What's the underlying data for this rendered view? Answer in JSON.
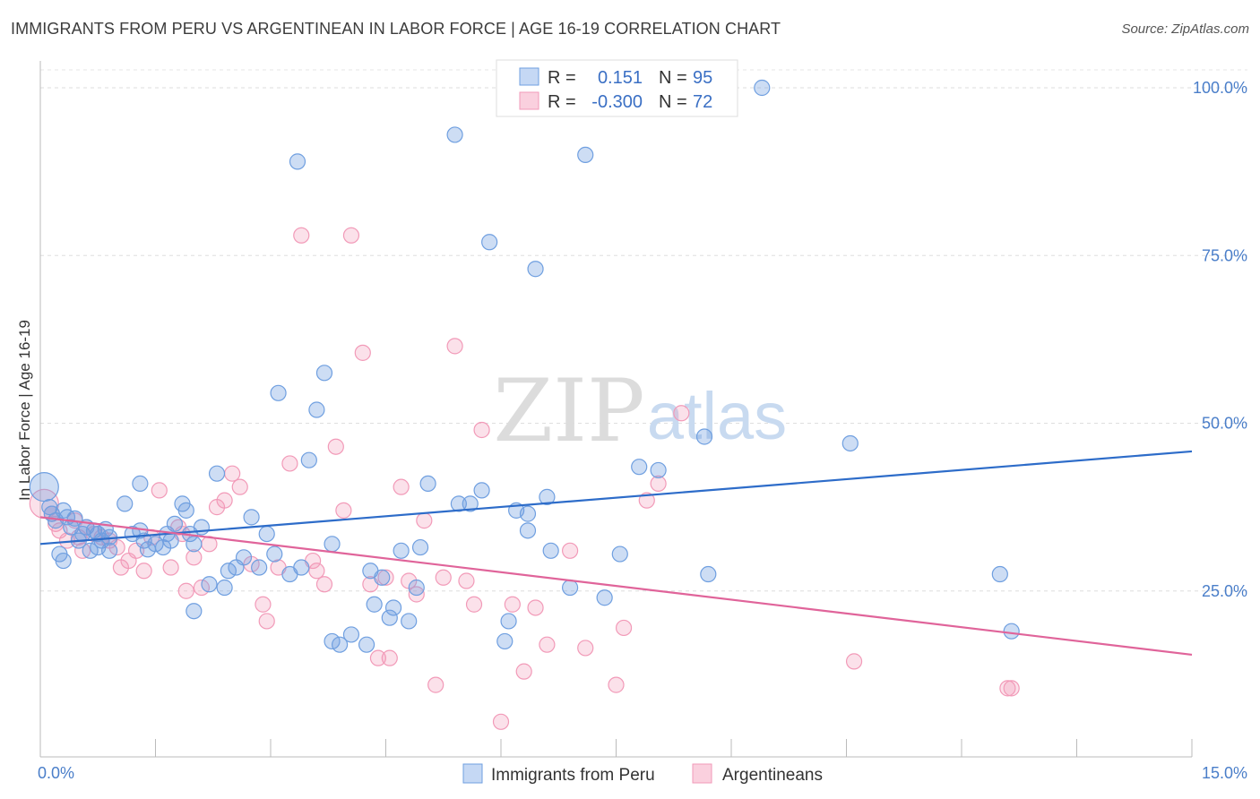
{
  "title": "IMMIGRANTS FROM PERU VS ARGENTINEAN IN LABOR FORCE | AGE 16-19 CORRELATION CHART",
  "source": "Source: ZipAtlas.com",
  "watermark": {
    "zip": "ZIP",
    "atlas": "atlas"
  },
  "colors": {
    "blue": "#6f9fe0",
    "pink": "#f29ab8",
    "blue_line": "#2d6cc9",
    "pink_line": "#e0649a"
  },
  "chart_data": {
    "type": "scatter",
    "ylabel": "In Labor Force | Age 16-19",
    "xlabel": "",
    "xlim": [
      0,
      15
    ],
    "ylim": [
      0,
      100
    ],
    "x_tick_labels": [
      "0.0%",
      "15.0%"
    ],
    "y_ticks": [
      25,
      50,
      75,
      100
    ],
    "y_tick_labels": [
      "25.0%",
      "50.0%",
      "75.0%",
      "100.0%"
    ],
    "grid": "horizontal dashed",
    "legend": {
      "placement": "top-center",
      "rows": [
        {
          "r_label": "R =",
          "r_value": "0.151",
          "n_label": "N =",
          "n_value": "95"
        },
        {
          "r_label": "R =",
          "r_value": "-0.300",
          "n_label": "N =",
          "n_value": "72"
        }
      ]
    },
    "series": [
      {
        "name": "Immigrants from Peru",
        "color": "#6f9fe0",
        "trend": {
          "x": [
            0,
            15
          ],
          "y": [
            32.0,
            45.8
          ]
        },
        "points": [
          [
            0.05,
            40.5
          ],
          [
            0.12,
            37.5
          ],
          [
            0.15,
            36.5
          ],
          [
            0.2,
            35.5
          ],
          [
            0.25,
            30.5
          ],
          [
            0.3,
            37
          ],
          [
            0.35,
            36
          ],
          [
            0.4,
            34.5
          ],
          [
            0.45,
            35.8
          ],
          [
            0.5,
            32.5
          ],
          [
            0.55,
            33.5
          ],
          [
            0.6,
            34.5
          ],
          [
            0.65,
            31
          ],
          [
            0.7,
            34
          ],
          [
            0.75,
            33.5
          ],
          [
            0.8,
            32.5
          ],
          [
            0.85,
            34.2
          ],
          [
            0.9,
            33
          ],
          [
            1.1,
            38
          ],
          [
            1.2,
            33.5
          ],
          [
            1.3,
            34
          ],
          [
            1.35,
            32.5
          ],
          [
            1.4,
            31.2
          ],
          [
            1.5,
            32
          ],
          [
            1.6,
            31.5
          ],
          [
            1.65,
            33.5
          ],
          [
            1.7,
            32.5
          ],
          [
            1.75,
            35
          ],
          [
            1.85,
            38
          ],
          [
            1.9,
            37
          ],
          [
            1.95,
            33.5
          ],
          [
            2.0,
            32
          ],
          [
            2.1,
            34.5
          ],
          [
            2.2,
            26
          ],
          [
            2.3,
            42.5
          ],
          [
            2.4,
            25.5
          ],
          [
            2.45,
            28
          ],
          [
            2.55,
            28.5
          ],
          [
            2.65,
            30
          ],
          [
            2.75,
            36
          ],
          [
            2.85,
            28.5
          ],
          [
            2.95,
            33.5
          ],
          [
            3.05,
            30.5
          ],
          [
            3.1,
            54.5
          ],
          [
            3.35,
            89
          ],
          [
            3.25,
            27.5
          ],
          [
            3.4,
            28.5
          ],
          [
            3.5,
            44.5
          ],
          [
            3.6,
            52
          ],
          [
            3.7,
            57.5
          ],
          [
            3.8,
            17.5
          ],
          [
            3.9,
            17
          ],
          [
            4.05,
            18.5
          ],
          [
            4.25,
            17
          ],
          [
            4.3,
            28
          ],
          [
            4.35,
            23
          ],
          [
            4.45,
            27
          ],
          [
            4.55,
            21
          ],
          [
            4.6,
            22.5
          ],
          [
            4.7,
            31
          ],
          [
            4.8,
            20.5
          ],
          [
            4.95,
            31.5
          ],
          [
            5.05,
            41
          ],
          [
            5.4,
            93
          ],
          [
            5.45,
            38
          ],
          [
            5.6,
            38
          ],
          [
            5.75,
            40
          ],
          [
            5.85,
            77
          ],
          [
            6.05,
            17.5
          ],
          [
            6.1,
            20.5
          ],
          [
            6.2,
            37
          ],
          [
            6.35,
            34
          ],
          [
            6.45,
            73
          ],
          [
            6.6,
            39
          ],
          [
            6.65,
            31
          ],
          [
            6.9,
            25.5
          ],
          [
            7.1,
            90
          ],
          [
            7.35,
            24
          ],
          [
            7.55,
            30.5
          ],
          [
            7.8,
            43.5
          ],
          [
            8.05,
            43
          ],
          [
            8.65,
            48
          ],
          [
            8.7,
            27.5
          ],
          [
            9.4,
            100
          ],
          [
            10.55,
            47
          ],
          [
            12.5,
            27.5
          ],
          [
            12.65,
            19
          ],
          [
            0.3,
            29.5
          ],
          [
            0.9,
            31
          ],
          [
            2.0,
            22
          ],
          [
            3.8,
            32
          ],
          [
            4.9,
            25.5
          ],
          [
            6.35,
            36.5
          ],
          [
            1.3,
            41
          ],
          [
            0.75,
            31.5
          ]
        ]
      },
      {
        "name": "Argentineans",
        "color": "#f29ab8",
        "trend": {
          "x": [
            0,
            15
          ],
          "y": [
            36.0,
            15.5
          ]
        },
        "points": [
          [
            0.05,
            38
          ],
          [
            0.15,
            36.5
          ],
          [
            0.2,
            35
          ],
          [
            0.25,
            34
          ],
          [
            0.35,
            32.5
          ],
          [
            0.45,
            35.5
          ],
          [
            0.5,
            33
          ],
          [
            0.6,
            34.5
          ],
          [
            0.7,
            33.5
          ],
          [
            0.8,
            33
          ],
          [
            0.9,
            32.5
          ],
          [
            1.0,
            31.5
          ],
          [
            1.05,
            28.5
          ],
          [
            1.15,
            29.5
          ],
          [
            1.25,
            31
          ],
          [
            1.35,
            28
          ],
          [
            1.45,
            33
          ],
          [
            1.55,
            40
          ],
          [
            1.7,
            28.5
          ],
          [
            1.8,
            34.5
          ],
          [
            1.9,
            25
          ],
          [
            2.0,
            30
          ],
          [
            2.1,
            25.5
          ],
          [
            2.2,
            32
          ],
          [
            2.3,
            37.5
          ],
          [
            2.4,
            38.5
          ],
          [
            2.5,
            42.5
          ],
          [
            2.6,
            40.5
          ],
          [
            2.75,
            29
          ],
          [
            2.9,
            23
          ],
          [
            2.95,
            20.5
          ],
          [
            3.1,
            28.5
          ],
          [
            3.25,
            44
          ],
          [
            3.4,
            78
          ],
          [
            3.55,
            29.5
          ],
          [
            3.6,
            28
          ],
          [
            3.7,
            26
          ],
          [
            3.85,
            46.5
          ],
          [
            3.95,
            37
          ],
          [
            4.05,
            78
          ],
          [
            4.2,
            60.5
          ],
          [
            4.3,
            26
          ],
          [
            4.4,
            15
          ],
          [
            4.5,
            27
          ],
          [
            4.55,
            15
          ],
          [
            4.7,
            40.5
          ],
          [
            4.8,
            26.5
          ],
          [
            4.9,
            24.5
          ],
          [
            5.0,
            35.5
          ],
          [
            5.15,
            11
          ],
          [
            5.25,
            27
          ],
          [
            5.4,
            61.5
          ],
          [
            5.55,
            26.5
          ],
          [
            5.65,
            23
          ],
          [
            5.75,
            49
          ],
          [
            6.0,
            5.5
          ],
          [
            6.15,
            23
          ],
          [
            6.3,
            13
          ],
          [
            6.45,
            22.5
          ],
          [
            6.6,
            17
          ],
          [
            6.9,
            31
          ],
          [
            7.1,
            16.5
          ],
          [
            7.5,
            11
          ],
          [
            7.6,
            19.5
          ],
          [
            7.9,
            38.5
          ],
          [
            8.05,
            41
          ],
          [
            8.35,
            51.5
          ],
          [
            10.6,
            14.5
          ],
          [
            12.6,
            10.5
          ],
          [
            12.65,
            10.5
          ],
          [
            1.85,
            33.5
          ],
          [
            0.55,
            31
          ]
        ]
      }
    ]
  },
  "bottom_legend": [
    {
      "label": "Immigrants from Peru"
    },
    {
      "label": "Argentineans"
    }
  ]
}
